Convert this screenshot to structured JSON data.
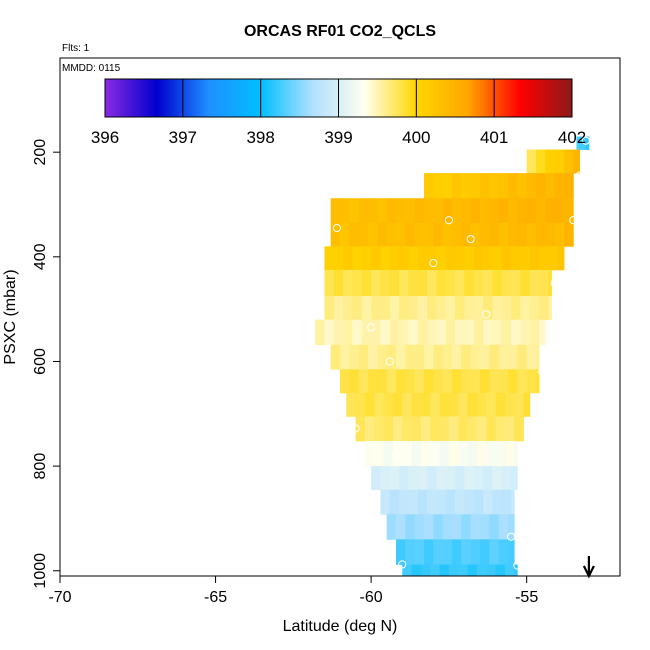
{
  "chart_data": {
    "type": "heatmap",
    "title": "ORCAS RF01 CO2_QCLS",
    "annotations": {
      "flights": "Flts: 1",
      "date": "MMDD: 0115"
    },
    "xlabel": "Latitude (deg N)",
    "ylabel": "PSXC (mbar)",
    "xlim": [
      -70,
      -52
    ],
    "ylim": [
      1010,
      20
    ],
    "x_ticks": [
      -70,
      -65,
      -60,
      -55
    ],
    "x_tick_labels": [
      "-70",
      "-65",
      "-60",
      "-55"
    ],
    "y_ticks": [
      200,
      400,
      600,
      800,
      1000
    ],
    "y_tick_labels": [
      "200",
      "400",
      "600",
      "800",
      "1000"
    ],
    "colorbar": {
      "range": [
        396,
        402
      ],
      "ticks": [
        396,
        397,
        398,
        399,
        400,
        401,
        402
      ],
      "tick_labels": [
        "396",
        "397",
        "398",
        "399",
        "400",
        "401",
        "402"
      ],
      "colors": [
        "#8a2be2",
        "#0000cd",
        "#1e90ff",
        "#00bfff",
        "#b0e0ff",
        "#fffff0",
        "#ffd700",
        "#ffa500",
        "#ff0000",
        "#8b1a1a"
      ]
    },
    "rows": [
      {
        "p_top": 170,
        "p_bot": 195,
        "lat_min": -53.4,
        "lat_max": -53.0,
        "v": 398.2
      },
      {
        "p_top": 195,
        "p_bot": 240,
        "lat_min": -55.0,
        "lat_max": -53.3,
        "v": 399.8,
        "v_end": 400.5
      },
      {
        "p_top": 240,
        "p_bot": 288,
        "lat_min": -58.3,
        "lat_max": -53.5,
        "v": 400.1,
        "v_end": 400.5
      },
      {
        "p_top": 288,
        "p_bot": 335,
        "lat_min": -61.3,
        "lat_max": -53.5,
        "v": 400.3,
        "v_end": 400.5
      },
      {
        "p_top": 335,
        "p_bot": 380,
        "lat_min": -61.3,
        "lat_max": -53.5,
        "v": 400.3,
        "v_end": 400.4
      },
      {
        "p_top": 380,
        "p_bot": 425,
        "lat_min": -61.5,
        "lat_max": -53.8,
        "v": 400.1,
        "v_end": 400.2
      },
      {
        "p_top": 425,
        "p_bot": 475,
        "lat_min": -61.5,
        "lat_max": -54.2,
        "v": 399.8
      },
      {
        "p_top": 475,
        "p_bot": 520,
        "lat_min": -61.5,
        "lat_max": -54.2,
        "v": 399.6
      },
      {
        "p_top": 520,
        "p_bot": 568,
        "lat_min": -61.8,
        "lat_max": -54.4,
        "v": 399.5
      },
      {
        "p_top": 568,
        "p_bot": 615,
        "lat_min": -61.3,
        "lat_max": -54.6,
        "v": 399.6
      },
      {
        "p_top": 615,
        "p_bot": 660,
        "lat_min": -61.0,
        "lat_max": -54.6,
        "v": 399.8
      },
      {
        "p_top": 660,
        "p_bot": 705,
        "lat_min": -60.8,
        "lat_max": -54.9,
        "v": 399.8
      },
      {
        "p_top": 705,
        "p_bot": 752,
        "lat_min": -60.5,
        "lat_max": -55.1,
        "v": 399.7
      },
      {
        "p_top": 752,
        "p_bot": 800,
        "lat_min": -60.2,
        "lat_max": -55.3,
        "v": 399.3
      },
      {
        "p_top": 800,
        "p_bot": 845,
        "lat_min": -60.0,
        "lat_max": -55.3,
        "v": 399.0
      },
      {
        "p_top": 845,
        "p_bot": 892,
        "lat_min": -59.7,
        "lat_max": -55.4,
        "v": 398.8
      },
      {
        "p_top": 892,
        "p_bot": 940,
        "lat_min": -59.5,
        "lat_max": -55.4,
        "v": 398.6
      },
      {
        "p_top": 940,
        "p_bot": 988,
        "lat_min": -59.2,
        "lat_max": -55.4,
        "v": 398.3
      },
      {
        "p_top": 988,
        "p_bot": 1010,
        "lat_min": -59.0,
        "lat_max": -55.3,
        "v": 398.2
      }
    ],
    "points": [
      {
        "lat": -53.1,
        "p": 178
      },
      {
        "lat": -53.3,
        "p": 245
      },
      {
        "lat": -53.5,
        "p": 330
      },
      {
        "lat": -57.5,
        "p": 330
      },
      {
        "lat": -61.1,
        "p": 345
      },
      {
        "lat": -56.8,
        "p": 366
      },
      {
        "lat": -58.0,
        "p": 412
      },
      {
        "lat": -54.1,
        "p": 450
      },
      {
        "lat": -56.3,
        "p": 510
      },
      {
        "lat": -60.0,
        "p": 535
      },
      {
        "lat": -59.4,
        "p": 600
      },
      {
        "lat": -54.5,
        "p": 620
      },
      {
        "lat": -60.5,
        "p": 728
      },
      {
        "lat": -59.2,
        "p": 780
      },
      {
        "lat": -55.5,
        "p": 935
      },
      {
        "lat": -59.0,
        "p": 988
      },
      {
        "lat": -55.3,
        "p": 990
      }
    ],
    "arrow_lat": -53.0
  }
}
